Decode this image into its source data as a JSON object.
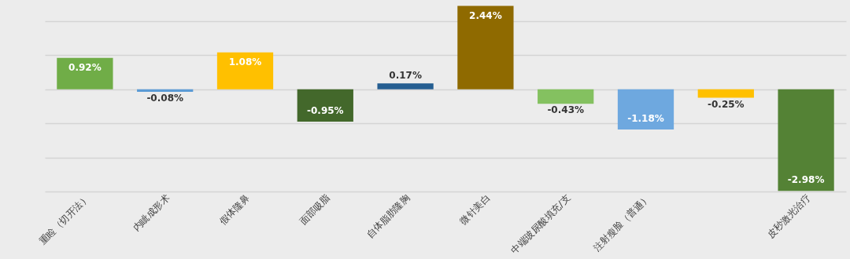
{
  "chart_data": {
    "type": "bar",
    "categories": [
      "重睑（切开法）",
      "内眦成形术",
      "假体隆鼻",
      "面部吸脂",
      "自体脂肪隆胸",
      "微针美白",
      "中端玻尿酸填充/支",
      "注射瘦脸（普通）",
      null,
      "皮秒激光治疗"
    ],
    "values": [
      0.92,
      -0.08,
      1.08,
      -0.95,
      0.17,
      2.44,
      -0.43,
      -1.18,
      -0.25,
      -2.98
    ],
    "colors": [
      "#70ad47",
      "#5b9bd5",
      "#ffc000",
      "#43682b",
      "#255e91",
      "#8f6a00",
      "#84c160",
      "#6ea8df",
      "#ffc000",
      "#548235"
    ],
    "value_labels": [
      "0.92%",
      "-0.08%",
      "1.08%",
      "-0.95%",
      "0.17%",
      "2.44%",
      "-0.43%",
      "-1.18%",
      "-0.25%",
      "-2.98%"
    ],
    "ylim": [
      -3,
      2.5
    ],
    "yticks": [
      {
        "value": -3,
        "label": null
      },
      {
        "value": -2,
        "label": null
      },
      {
        "value": -1,
        "label": null
      },
      {
        "value": 0,
        "label": null
      },
      {
        "value": 1,
        "label": null
      },
      {
        "value": 2,
        "label": null
      }
    ],
    "grid": "y",
    "tick_labels": "x"
  }
}
